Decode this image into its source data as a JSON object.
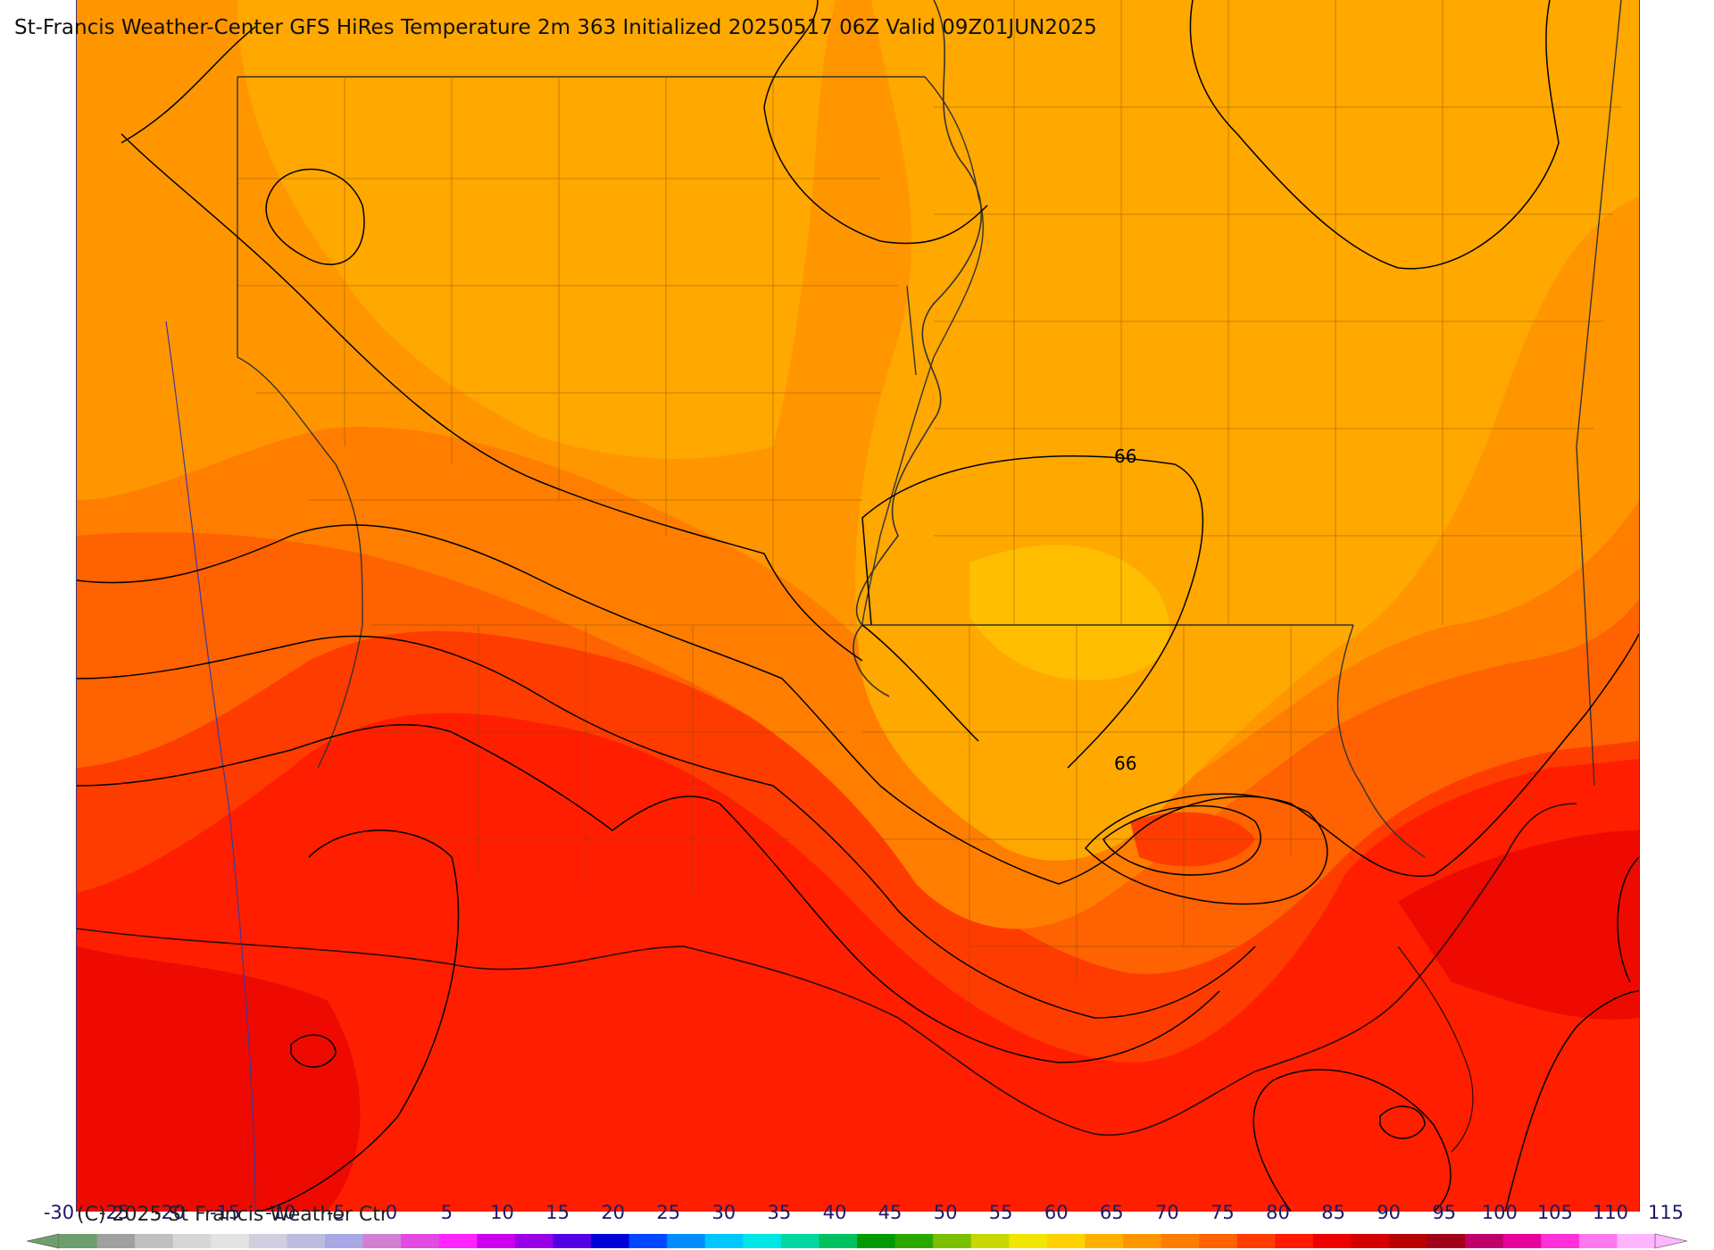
{
  "title": "St-Francis Weather-Center GFS HiRes Temperature 2m  363 Initialized 20250517 06Z Valid 09Z01JUN2025",
  "copyright": "(C) 2025 St Francis Weather Ctr",
  "contour_labels": [
    "66",
    "66"
  ],
  "colorbar": {
    "ticks": [
      "-30",
      "-25",
      "-20",
      "-15",
      "-10",
      "-5",
      "0",
      "5",
      "10",
      "15",
      "20",
      "25",
      "30",
      "35",
      "40",
      "45",
      "50",
      "55",
      "60",
      "65",
      "70",
      "75",
      "80",
      "85",
      "90",
      "95",
      "100",
      "105",
      "110",
      "115"
    ],
    "colors": [
      "#6e9e6e",
      "#a0a0a0",
      "#c0c0c0",
      "#d6d6d6",
      "#e3e3e3",
      "#cfcfe0",
      "#bcbce0",
      "#a8a8e6",
      "#d27ed2",
      "#e24ae2",
      "#ff24ff",
      "#cc00ee",
      "#9a00e6",
      "#5200e6",
      "#0000d8",
      "#0048ff",
      "#008cff",
      "#00c8ff",
      "#00e6e6",
      "#00d8a0",
      "#00c060",
      "#009a00",
      "#2aa800",
      "#7ac000",
      "#c8d800",
      "#f0e600",
      "#ffd200",
      "#ffb000",
      "#ff9600",
      "#ff7c00",
      "#ff6200",
      "#ff3c00",
      "#ff1a00",
      "#ee0000",
      "#d40000",
      "#b80000",
      "#a00018",
      "#c0006a",
      "#e8009e",
      "#ff30d8",
      "#ff78f0",
      "#ffb4ff"
    ]
  }
}
